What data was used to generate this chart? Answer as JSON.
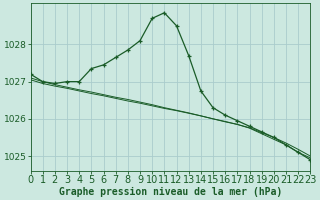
{
  "title": "Graphe pression niveau de la mer (hPa)",
  "bg_color": "#cce8e0",
  "grid_color": "#aacccc",
  "line_color": "#1a5c28",
  "marker_color": "#1a5c28",
  "ylim": [
    1024.6,
    1029.1
  ],
  "yticks": [
    1025,
    1026,
    1027,
    1028
  ],
  "xlim": [
    0,
    23
  ],
  "xticks": [
    0,
    1,
    2,
    3,
    4,
    5,
    6,
    7,
    8,
    9,
    10,
    11,
    12,
    13,
    14,
    15,
    16,
    17,
    18,
    19,
    20,
    21,
    22,
    23
  ],
  "series1_x": [
    0,
    1,
    2,
    3,
    4,
    5,
    6,
    7,
    8,
    9,
    10,
    11,
    12,
    13,
    14,
    15,
    16,
    17,
    18,
    19,
    20,
    21,
    22,
    23
  ],
  "series1_y": [
    1027.2,
    1027.0,
    1026.95,
    1027.0,
    1027.0,
    1027.35,
    1027.45,
    1027.65,
    1027.85,
    1028.1,
    1028.7,
    1028.85,
    1028.5,
    1027.7,
    1026.75,
    1026.3,
    1026.1,
    1025.95,
    1025.8,
    1025.65,
    1025.5,
    1025.3,
    1025.1,
    1024.9
  ],
  "series2_x": [
    0,
    1,
    2,
    3,
    4,
    5,
    6,
    7,
    8,
    9,
    10,
    11,
    12,
    13,
    14,
    15,
    16,
    17,
    18,
    19,
    20,
    21,
    22,
    23
  ],
  "series2_y": [
    1027.05,
    1026.95,
    1026.88,
    1026.82,
    1026.75,
    1026.68,
    1026.62,
    1026.55,
    1026.48,
    1026.42,
    1026.35,
    1026.28,
    1026.22,
    1026.15,
    1026.08,
    1026.0,
    1025.92,
    1025.85,
    1025.75,
    1025.6,
    1025.45,
    1025.3,
    1025.1,
    1024.95
  ],
  "series3_x": [
    0,
    1,
    2,
    3,
    4,
    5,
    6,
    7,
    8,
    9,
    10,
    11,
    12,
    13,
    14,
    15,
    16,
    17,
    18,
    19,
    20,
    21,
    22,
    23
  ],
  "series3_y": [
    1027.1,
    1027.0,
    1026.92,
    1026.85,
    1026.78,
    1026.72,
    1026.65,
    1026.58,
    1026.52,
    1026.45,
    1026.38,
    1026.3,
    1026.23,
    1026.16,
    1026.08,
    1026.0,
    1025.93,
    1025.85,
    1025.76,
    1025.63,
    1025.5,
    1025.35,
    1025.18,
    1025.0
  ],
  "xlabel_fontsize": 7,
  "ylabel_fontsize": 6.5,
  "title_fontsize": 7
}
